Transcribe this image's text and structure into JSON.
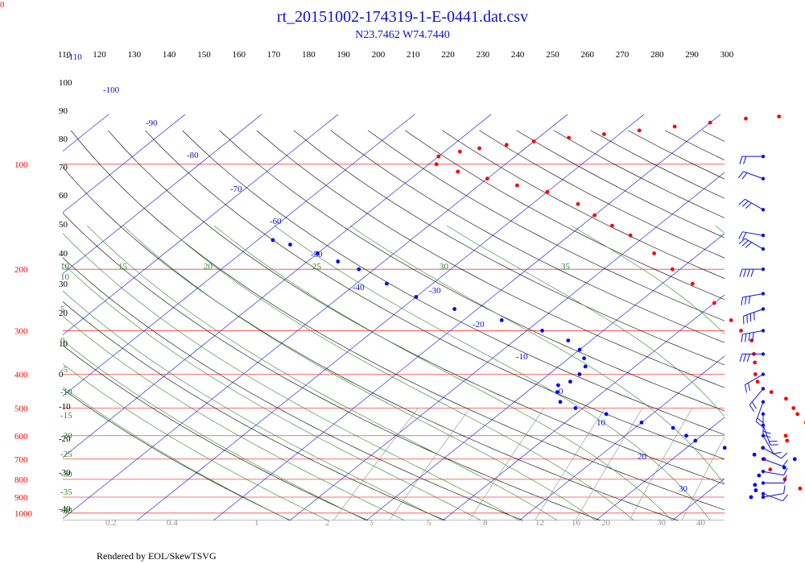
{
  "corner_label": "0",
  "credit": "Rendered by EOL/SkewTSVG",
  "colors": {
    "title": "#1010d0",
    "temperature_trace": "#ff0000",
    "dewpoint_trace": "#0000ff",
    "pressure_lines": "#ff4040",
    "isotherms": "#3030e0",
    "dry_adiabats": "#000000",
    "moist_adiabats": "#2a8a2a",
    "mixing_ratio": "#909090",
    "wind_barbs": "#1010e0"
  },
  "chart_data": {
    "type": "skew-t",
    "title": "rt_20151002-174319-1-E-0441.dat.csv",
    "subtitle": "N23.7462 W74.7440",
    "pressure_levels": [
      100,
      200,
      300,
      400,
      500,
      600,
      700,
      800,
      900,
      1000
    ],
    "pressure_labels": [
      "100",
      "200",
      "300",
      "400",
      "500",
      "600",
      "700",
      "800",
      "900",
      "1000"
    ],
    "theta_labels": [
      "110",
      "120",
      "130",
      "140",
      "150",
      "160",
      "170",
      "180",
      "190",
      "200",
      "210",
      "220",
      "230",
      "240",
      "250",
      "260",
      "270",
      "280",
      "290",
      "300"
    ],
    "isotherm_labels": [
      "-110",
      "-100",
      "-90",
      "-80",
      "-70",
      "-60",
      "-50",
      "-40",
      "-30",
      "-20",
      "-10",
      "0",
      "10",
      "20",
      "30"
    ],
    "left_dry_labels": [
      "100",
      "90",
      "80",
      "70",
      "60",
      "50",
      "40",
      "30",
      "20",
      "10",
      "0",
      "-10",
      "-20",
      "-30",
      "-40"
    ],
    "moist_adiabat_labels": [
      "10",
      "15",
      "20",
      "25",
      "30",
      "35"
    ],
    "moist_left_labels": [
      "10",
      "5",
      "0",
      "-5",
      "-10",
      "-15",
      "-20",
      "-25",
      "-30",
      "-35",
      "-40"
    ],
    "mixing_ratio_labels": [
      "0.2",
      "0.4",
      "1",
      "2",
      "3",
      "5",
      "8",
      "12",
      "16",
      "20",
      "30",
      "40"
    ],
    "temperature": [
      [
        1000,
        29
      ],
      [
        950,
        26.5
      ],
      [
        900,
        24.5
      ],
      [
        850,
        21.5
      ],
      [
        800,
        18
      ],
      [
        750,
        14.5
      ],
      [
        700,
        12
      ],
      [
        650,
        10
      ],
      [
        620,
        12
      ],
      [
        600,
        11
      ],
      [
        580,
        14
      ],
      [
        550,
        11.5
      ],
      [
        520,
        9
      ],
      [
        500,
        7.5
      ],
      [
        470,
        5
      ],
      [
        450,
        2
      ],
      [
        420,
        -1.5
      ],
      [
        400,
        -3
      ],
      [
        370,
        -5
      ],
      [
        350,
        -6.5
      ],
      [
        320,
        -9
      ],
      [
        300,
        -12
      ],
      [
        280,
        -15
      ],
      [
        250,
        -20
      ],
      [
        220,
        -26
      ],
      [
        200,
        -31
      ],
      [
        180,
        -36
      ],
      [
        160,
        -42
      ],
      [
        150,
        -46
      ],
      [
        140,
        -50
      ],
      [
        130,
        -54
      ],
      [
        120,
        -60
      ],
      [
        115,
        -65
      ],
      [
        110,
        -70
      ],
      [
        105,
        -75
      ],
      [
        100,
        -79
      ],
      [
        95,
        -80
      ],
      [
        92,
        -78
      ],
      [
        90,
        -76
      ],
      [
        88,
        -73
      ],
      [
        86,
        -70
      ],
      [
        84,
        -66
      ],
      [
        82,
        -62
      ],
      [
        80,
        -58
      ],
      [
        78,
        -54
      ],
      [
        76,
        -50
      ],
      [
        74,
        -46
      ],
      [
        73,
        -42
      ],
      [
        72,
        -38
      ]
    ],
    "dewpoint": [
      [
        900,
        16.5
      ],
      [
        860,
        16
      ],
      [
        830,
        15
      ],
      [
        780,
        14
      ],
      [
        740,
        16
      ],
      [
        700,
        16
      ],
      [
        680,
        10
      ],
      [
        650,
        5
      ],
      [
        620,
        0
      ],
      [
        600,
        -2
      ],
      [
        570,
        -5
      ],
      [
        550,
        -10
      ],
      [
        520,
        -16
      ],
      [
        500,
        -21
      ],
      [
        480,
        -24
      ],
      [
        450,
        -26
      ],
      [
        430,
        -27
      ],
      [
        420,
        -26
      ],
      [
        400,
        -26
      ],
      [
        380,
        -26.5
      ],
      [
        360,
        -28
      ],
      [
        340,
        -30
      ],
      [
        320,
        -33
      ],
      [
        300,
        -38
      ],
      [
        280,
        -45
      ],
      [
        260,
        -53
      ],
      [
        240,
        -60
      ],
      [
        220,
        -66
      ],
      [
        200,
        -72
      ],
      [
        190,
        -76
      ],
      [
        180,
        -80
      ],
      [
        170,
        -85
      ],
      [
        165,
        -88
      ]
    ],
    "wind": [
      [
        95,
        270,
        15
      ],
      [
        110,
        290,
        20
      ],
      [
        135,
        300,
        25
      ],
      [
        160,
        280,
        20
      ],
      [
        175,
        300,
        30
      ],
      [
        200,
        270,
        35
      ],
      [
        235,
        260,
        30
      ],
      [
        260,
        250,
        40
      ],
      [
        300,
        260,
        35
      ],
      [
        350,
        270,
        30
      ],
      [
        400,
        240,
        15
      ],
      [
        440,
        220,
        15
      ],
      [
        480,
        200,
        20
      ],
      [
        520,
        180,
        15
      ],
      [
        560,
        160,
        15
      ],
      [
        600,
        150,
        10
      ],
      [
        650,
        120,
        10
      ],
      [
        700,
        110,
        5
      ],
      [
        760,
        100,
        10
      ],
      [
        820,
        90,
        5
      ],
      [
        880,
        110,
        5
      ],
      [
        900,
        80,
        10
      ]
    ]
  }
}
